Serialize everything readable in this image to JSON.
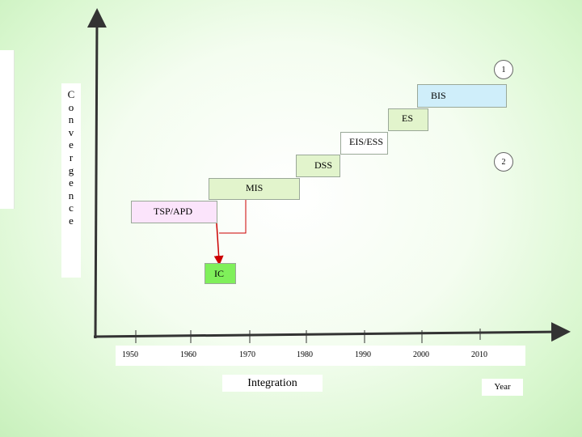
{
  "yaxis": {
    "letters": [
      "C",
      "o",
      "n",
      "v",
      "e",
      "r",
      "g",
      "e",
      "n",
      "c",
      "e"
    ]
  },
  "stages": {
    "bis": "BIS",
    "es": "ES",
    "eis_ess": "EIS/ESS",
    "dss": "DSS",
    "mis": "MIS",
    "tsp_apd": "TSP/APD",
    "ic": "IC"
  },
  "markers": {
    "one": "1",
    "two": "2"
  },
  "xaxis": {
    "ticks": [
      "1950",
      "1960",
      "1970",
      "1980",
      "1990",
      "2000",
      "2010"
    ],
    "integration_label": "Integration",
    "year_label": "Year"
  },
  "colors": {
    "bis": "#cfeefa",
    "es": "#e2f4cc",
    "eis_ess": "#ffffff",
    "dss": "#e2f4cc",
    "mis": "#e2f4cc",
    "tsp_apd": "#fbe4fb",
    "ic": "#7ff05a",
    "arrow": "#cc0000"
  }
}
